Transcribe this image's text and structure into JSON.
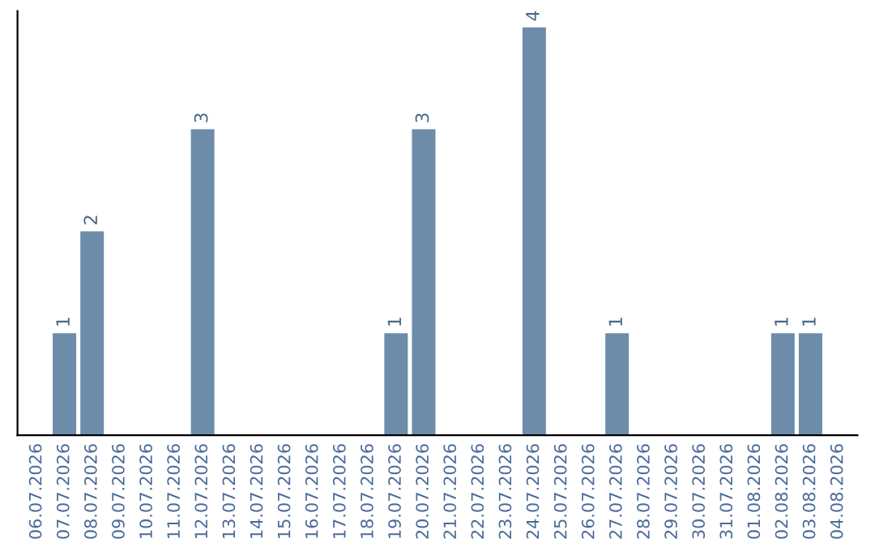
{
  "chart_data": {
    "type": "bar",
    "categories": [
      "06.07.2026",
      "07.07.2026",
      "08.07.2026",
      "09.07.2026",
      "10.07.2026",
      "11.07.2026",
      "12.07.2026",
      "13.07.2026",
      "14.07.2026",
      "15.07.2026",
      "16.07.2026",
      "17.07.2026",
      "18.07.2026",
      "19.07.2026",
      "20.07.2026",
      "21.07.2026",
      "22.07.2026",
      "23.07.2026",
      "24.07.2026",
      "25.07.2026",
      "26.07.2026",
      "27.07.2026",
      "28.07.2026",
      "29.07.2026",
      "30.07.2026",
      "31.07.2026",
      "01.08.2026",
      "02.08.2026",
      "03.08.2026",
      "04.08.2026"
    ],
    "values": [
      null,
      1,
      2,
      null,
      null,
      null,
      3,
      null,
      null,
      null,
      null,
      null,
      null,
      1,
      3,
      null,
      null,
      null,
      4,
      null,
      null,
      1,
      null,
      null,
      null,
      null,
      null,
      1,
      1,
      null
    ],
    "color": "#6d8caa",
    "data_labels": true,
    "tick_labels": "x",
    "grid": false
  }
}
